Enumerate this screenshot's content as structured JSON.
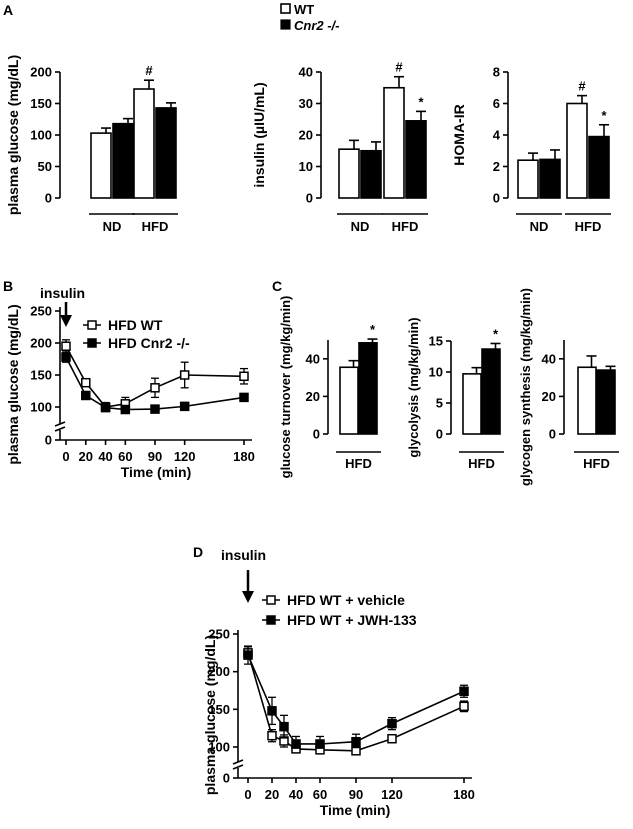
{
  "legend": {
    "wt": "WT",
    "ko": "Cnr2 -/-"
  },
  "chart_data": [
    {
      "panel": "A",
      "type": "bar",
      "ylabel": "plasma glucose (mg/dL)",
      "ylim": [
        0,
        200
      ],
      "yticks": [
        0,
        50,
        100,
        150,
        200
      ],
      "categories": [
        "ND",
        "HFD"
      ],
      "series": [
        {
          "name": "WT",
          "values": [
            103,
            173
          ],
          "err": [
            8,
            14
          ]
        },
        {
          "name": "Cnr2 -/-",
          "values": [
            118,
            143
          ],
          "err": [
            8,
            8
          ]
        }
      ],
      "annotations": [
        {
          "category": "HFD",
          "series": "WT",
          "text": "#"
        }
      ]
    },
    {
      "panel": "A",
      "type": "bar",
      "ylabel": "insulin (µIU/mL)",
      "ylim": [
        0,
        40
      ],
      "yticks": [
        0,
        10,
        20,
        30,
        40
      ],
      "categories": [
        "ND",
        "HFD"
      ],
      "series": [
        {
          "name": "WT",
          "values": [
            15.5,
            35
          ],
          "err": [
            2.8,
            3.5
          ]
        },
        {
          "name": "Cnr2 -/-",
          "values": [
            15,
            24.5
          ],
          "err": [
            2.8,
            3
          ]
        }
      ],
      "annotations": [
        {
          "category": "HFD",
          "series": "WT",
          "text": "#"
        },
        {
          "category": "HFD",
          "series": "Cnr2 -/-",
          "text": "*"
        }
      ]
    },
    {
      "panel": "A",
      "type": "bar",
      "ylabel": "HOMA-IR",
      "ylim": [
        0,
        8
      ],
      "yticks": [
        0,
        2,
        4,
        6,
        8
      ],
      "categories": [
        "ND",
        "HFD"
      ],
      "series": [
        {
          "name": "WT",
          "values": [
            2.4,
            6.0
          ],
          "err": [
            0.45,
            0.5
          ]
        },
        {
          "name": "Cnr2 -/-",
          "values": [
            2.45,
            3.9
          ],
          "err": [
            0.6,
            0.75
          ]
        }
      ],
      "annotations": [
        {
          "category": "HFD",
          "series": "WT",
          "text": "#"
        },
        {
          "category": "HFD",
          "series": "Cnr2 -/-",
          "text": "*"
        }
      ]
    },
    {
      "panel": "B",
      "type": "line",
      "arrow_label": "insulin",
      "xlabel": "Time (min)",
      "ylabel": "plasma glucose (mg/dL)",
      "ylim": [
        0,
        250
      ],
      "yticks": [
        0,
        100,
        150,
        200,
        250
      ],
      "xticks": [
        0,
        20,
        40,
        60,
        90,
        120,
        180
      ],
      "x": [
        0,
        20,
        40,
        60,
        90,
        120,
        180
      ],
      "series": [
        {
          "name": "HFD WT",
          "values": [
            195,
            138,
            100,
            105,
            130,
            150,
            148
          ],
          "err": [
            10,
            5,
            7,
            10,
            15,
            20,
            12
          ],
          "marker": "open"
        },
        {
          "name": "HFD Cnr2 -/-",
          "values": [
            178,
            118,
            97,
            88,
            90,
            101,
            115
          ],
          "err": [
            8,
            4,
            5,
            4,
            5,
            4,
            4
          ],
          "marker": "filled"
        }
      ]
    },
    {
      "panel": "C",
      "type": "bar",
      "ylabel": "glucose turnover (mg/kg/min)",
      "ylim": [
        0,
        50
      ],
      "yticks": [
        0,
        20,
        40
      ],
      "categories": [
        "HFD"
      ],
      "series": [
        {
          "name": "WT",
          "values": [
            35.5
          ],
          "err": [
            3.5
          ]
        },
        {
          "name": "Cnr2 -/-",
          "values": [
            48.5
          ],
          "err": [
            2
          ]
        }
      ],
      "annotations": [
        {
          "category": "HFD",
          "series": "Cnr2 -/-",
          "text": "*"
        }
      ]
    },
    {
      "panel": "C",
      "type": "bar",
      "ylabel": "glycolysis (mg/kg/min)",
      "ylim": [
        0,
        15
      ],
      "yticks": [
        0,
        5,
        10,
        15
      ],
      "categories": [
        "HFD"
      ],
      "series": [
        {
          "name": "WT",
          "values": [
            9.7
          ],
          "err": [
            1
          ]
        },
        {
          "name": "Cnr2 -/-",
          "values": [
            13.7
          ],
          "err": [
            0.9
          ]
        }
      ],
      "annotations": [
        {
          "category": "HFD",
          "series": "Cnr2 -/-",
          "text": "*"
        }
      ]
    },
    {
      "panel": "C",
      "type": "bar",
      "ylabel": "glycogen synthesis (mg/kg/min)",
      "ylim": [
        0,
        50
      ],
      "yticks": [
        0,
        20,
        40
      ],
      "categories": [
        "HFD"
      ],
      "series": [
        {
          "name": "WT",
          "values": [
            35.5
          ],
          "err": [
            6
          ]
        },
        {
          "name": "Cnr2 -/-",
          "values": [
            34
          ],
          "err": [
            2
          ]
        }
      ],
      "annotations": []
    },
    {
      "panel": "D",
      "type": "line",
      "arrow_label": "insulin",
      "xlabel": "Time (min)",
      "ylabel": "plasma glucose (mg/dL)",
      "ylim": [
        0,
        250
      ],
      "yticks": [
        0,
        100,
        150,
        200,
        250
      ],
      "xticks": [
        0,
        20,
        40,
        60,
        90,
        120,
        180
      ],
      "x": [
        0,
        20,
        30,
        40,
        60,
        90,
        120,
        180
      ],
      "series": [
        {
          "name": "HFD WT + vehicle",
          "values": [
            225,
            115,
            108,
            90,
            85,
            80,
            111,
            154
          ],
          "err": [
            8,
            8,
            8,
            8,
            8,
            8,
            5,
            7
          ],
          "marker": "open"
        },
        {
          "name": "HFD WT + JWH-133",
          "values": [
            222,
            148,
            127,
            104,
            104,
            107,
            131,
            174
          ],
          "err": [
            12,
            18,
            15,
            10,
            10,
            10,
            8,
            8
          ],
          "marker": "filled"
        }
      ]
    }
  ]
}
